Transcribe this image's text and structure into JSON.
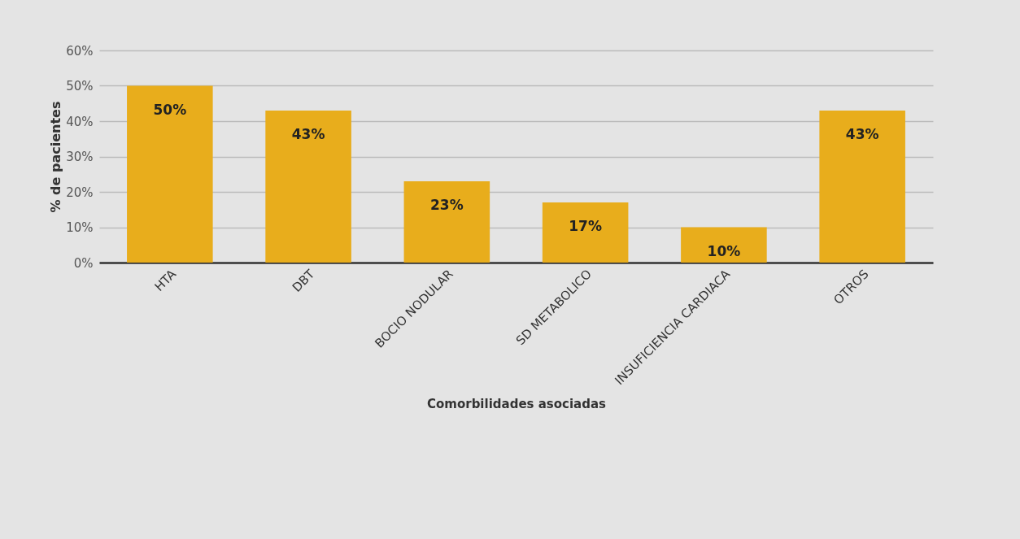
{
  "chart_data": {
    "type": "bar",
    "xlabel": "Comorbilidades asociadas",
    "ylabel": "% de pacientes",
    "categories": [
      "HTA",
      "DBT",
      "BOCIO NODULAR",
      "SD METABOLICO",
      "INSUFICIENCIA CARDIACA",
      "OTROS"
    ],
    "values": [
      50,
      43,
      23,
      17,
      10,
      43
    ],
    "value_labels": [
      "50%",
      "43%",
      "23%",
      "17%",
      "10%",
      "43%"
    ],
    "color": "#e8ad1c",
    "ylim": [
      0,
      60
    ],
    "yticks": [
      {
        "value": 0,
        "label": "0%"
      },
      {
        "value": 10,
        "label": "10%"
      },
      {
        "value": 20,
        "label": "20%"
      },
      {
        "value": 30,
        "label": "30%"
      },
      {
        "value": 40,
        "label": "40%"
      },
      {
        "value": 50,
        "label": "50%"
      },
      {
        "value": 60,
        "label": "60%"
      }
    ],
    "grid": "y"
  }
}
